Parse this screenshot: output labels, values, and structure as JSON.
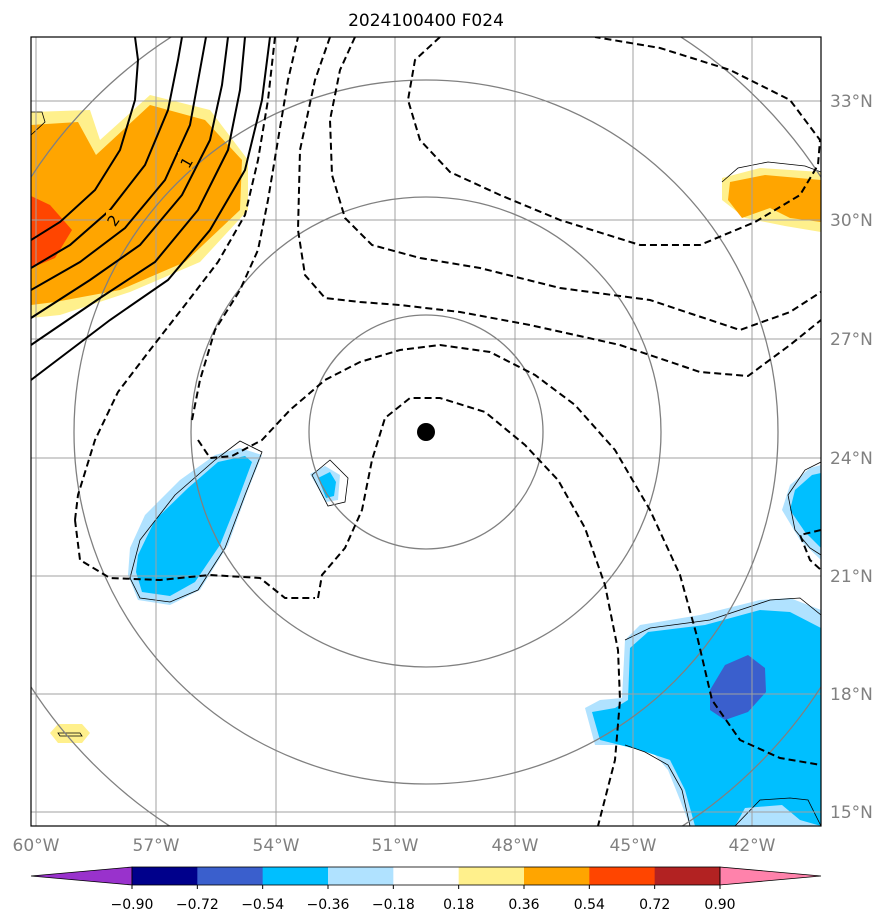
{
  "title": "2024100400 F024",
  "map": {
    "lon_labels": [
      "60°W",
      "57°W",
      "54°W",
      "51°W",
      "48°W",
      "45°W",
      "42°W"
    ],
    "lat_labels": [
      "33°N",
      "30°N",
      "27°N",
      "24°N",
      "21°N",
      "18°N",
      "15°N"
    ],
    "center_marker": {
      "lon": -49.4,
      "lat": 24.6
    },
    "contour_labels": [
      "1",
      "2"
    ]
  },
  "colorbar": {
    "ticks": [
      "−0.90",
      "−0.72",
      "−0.54",
      "−0.36",
      "−0.18",
      "0.18",
      "0.36",
      "0.54",
      "0.72",
      "0.90"
    ],
    "colors": [
      "#9932cc",
      "#00008b",
      "#3a5fcd",
      "#00bfff",
      "#b0e2ff",
      "#ffffff",
      "#fff08c",
      "#ffa500",
      "#ff4500",
      "#b22222",
      "#ff82ab"
    ]
  }
}
